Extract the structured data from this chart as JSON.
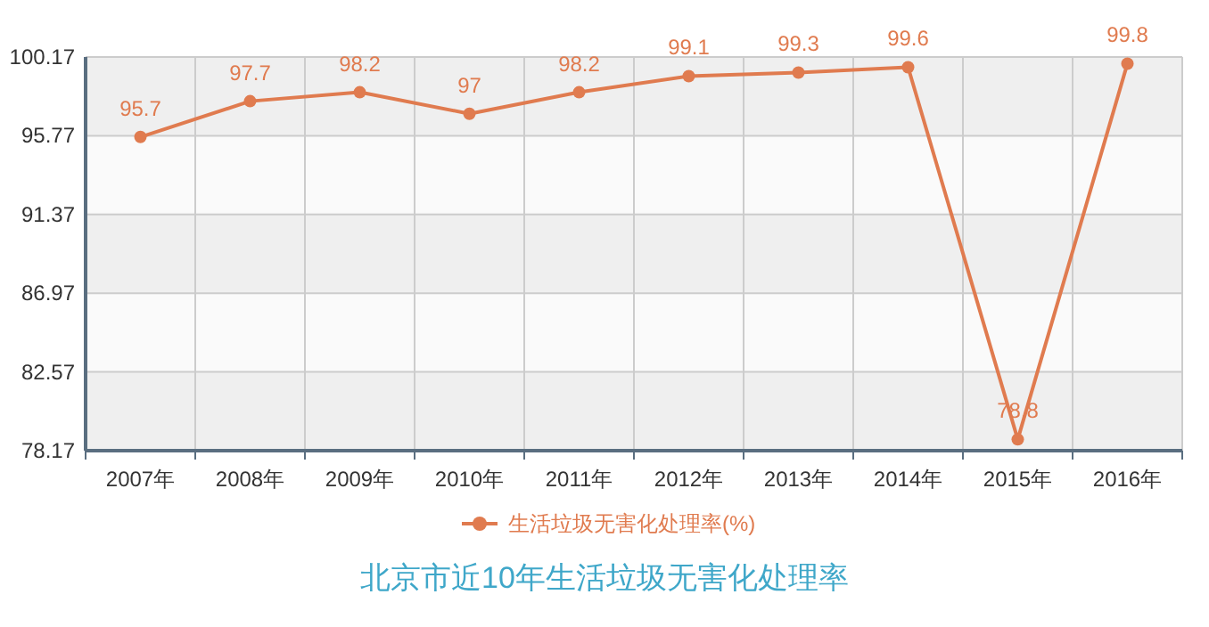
{
  "chart_data": {
    "type": "line",
    "title": "北京市近10年生活垃圾无害化处理率",
    "categories": [
      "2007年",
      "2008年",
      "2009年",
      "2010年",
      "2011年",
      "2012年",
      "2013年",
      "2014年",
      "2015年",
      "2016年"
    ],
    "series": [
      {
        "name": "生活垃圾无害化处理率(%)",
        "color": "#e07b4f",
        "values": [
          95.7,
          97.7,
          98.2,
          97,
          98.2,
          99.1,
          99.3,
          99.6,
          78.8,
          99.8
        ]
      }
    ],
    "ylim": [
      78.17,
      100.17
    ],
    "yticks": [
      78.17,
      82.57,
      86.97,
      91.37,
      95.77,
      100.17
    ],
    "grid": true,
    "legend": "bottom",
    "marker": "circle",
    "line_style": "solid",
    "data_labels": true
  }
}
